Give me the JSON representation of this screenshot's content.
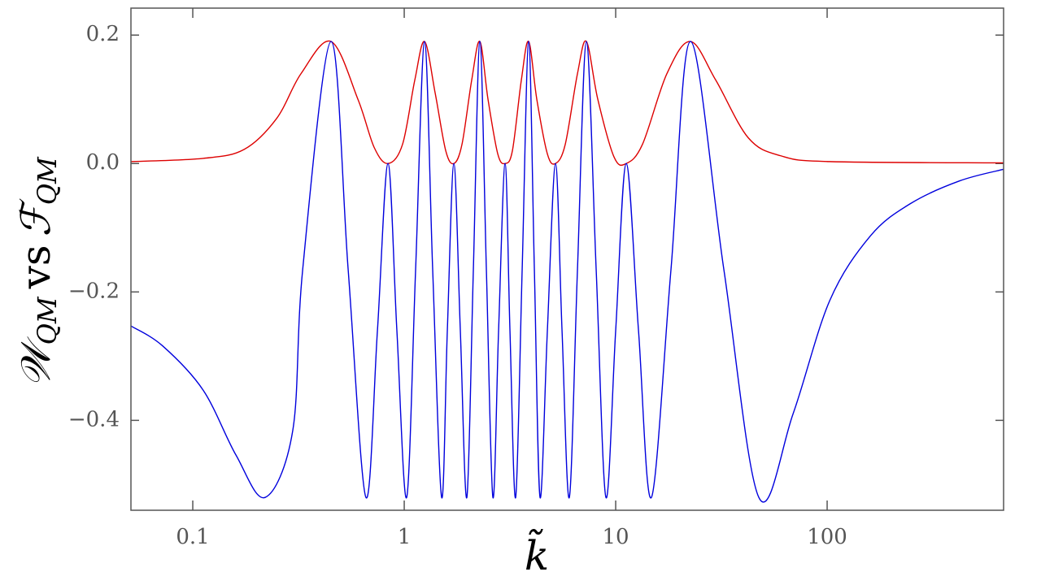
{
  "chart_data": {
    "type": "line",
    "xlabel": "k̃",
    "ylabel": [
      "𝒲",
      "QM",
      "vs",
      "ℱ",
      "QM"
    ],
    "xscale": "log",
    "xlim": [
      0.051,
      683
    ],
    "ylim": [
      -0.54,
      0.242
    ],
    "xticks": [
      0.1,
      1,
      10,
      100
    ],
    "yticks": [
      {
        "value": -0.4,
        "label": "−0.4"
      },
      {
        "value": -0.2,
        "label": "−0.2"
      },
      {
        "value": 0,
        "label": "0.0"
      },
      0.2
    ],
    "grid": false,
    "series": [
      {
        "color": "#dd0000",
        "x": [
          0.051,
          0.112,
          0.175,
          0.249,
          0.325,
          0.451,
          0.604,
          0.721,
          0.838,
          0.982,
          1.122,
          1.248,
          1.4,
          1.571,
          1.717,
          1.876,
          2.085,
          2.279,
          2.49,
          2.769,
          2.999,
          3.248,
          3.58,
          3.877,
          4.236,
          4.753,
          5.193,
          5.776,
          6.596,
          7.271,
          8.23,
          9.825,
          11.22,
          13.39,
          17.47,
          22.59,
          29.72,
          42.37,
          60.37,
          102.7,
          683.3
        ],
        "values": [
          0.003,
          0.008,
          0.022,
          0.07,
          0.14,
          0.19,
          0.1,
          0.025,
          0.0,
          0.03,
          0.13,
          0.19,
          0.11,
          0.02,
          0.0,
          0.03,
          0.13,
          0.19,
          0.1,
          0.015,
          0.0,
          0.02,
          0.13,
          0.19,
          0.1,
          0.015,
          0.0,
          0.03,
          0.14,
          0.19,
          0.1,
          0.01,
          0.0,
          0.03,
          0.14,
          0.19,
          0.13,
          0.04,
          0.012,
          0.003,
          0.001
        ]
      },
      {
        "color": "#0000dd",
        "x": [
          0.051,
          0.072,
          0.112,
          0.16,
          0.22,
          0.297,
          0.331,
          0.451,
          0.543,
          0.659,
          0.747,
          0.838,
          0.923,
          1.027,
          1.132,
          1.248,
          1.363,
          1.503,
          1.599,
          1.717,
          1.842,
          1.978,
          2.123,
          2.279,
          2.446,
          2.626,
          2.794,
          2.999,
          3.162,
          3.365,
          3.612,
          3.877,
          4.125,
          4.388,
          4.753,
          5.193,
          5.575,
          6.037,
          6.596,
          7.271,
          8.085,
          8.991,
          10,
          11.22,
          12.82,
          14.76,
          18.26,
          22.59,
          32.47,
          47.53,
          68.97,
          102.7,
          159.9,
          249,
          423.6,
          683.3
        ],
        "values": [
          -0.253,
          -0.284,
          -0.353,
          -0.454,
          -0.52,
          -0.416,
          -0.165,
          0.19,
          -0.165,
          -0.52,
          -0.26,
          0.0,
          -0.26,
          -0.52,
          -0.165,
          0.19,
          -0.165,
          -0.52,
          -0.26,
          0.0,
          -0.26,
          -0.52,
          -0.165,
          0.19,
          -0.165,
          -0.52,
          -0.26,
          0.0,
          -0.26,
          -0.52,
          -0.165,
          0.19,
          -0.165,
          -0.52,
          -0.26,
          0.0,
          -0.26,
          -0.52,
          -0.165,
          0.19,
          -0.165,
          -0.52,
          -0.26,
          0.0,
          -0.26,
          -0.52,
          -0.165,
          0.19,
          -0.165,
          -0.52,
          -0.39,
          -0.214,
          -0.113,
          -0.062,
          -0.027,
          -0.009
        ]
      }
    ]
  }
}
